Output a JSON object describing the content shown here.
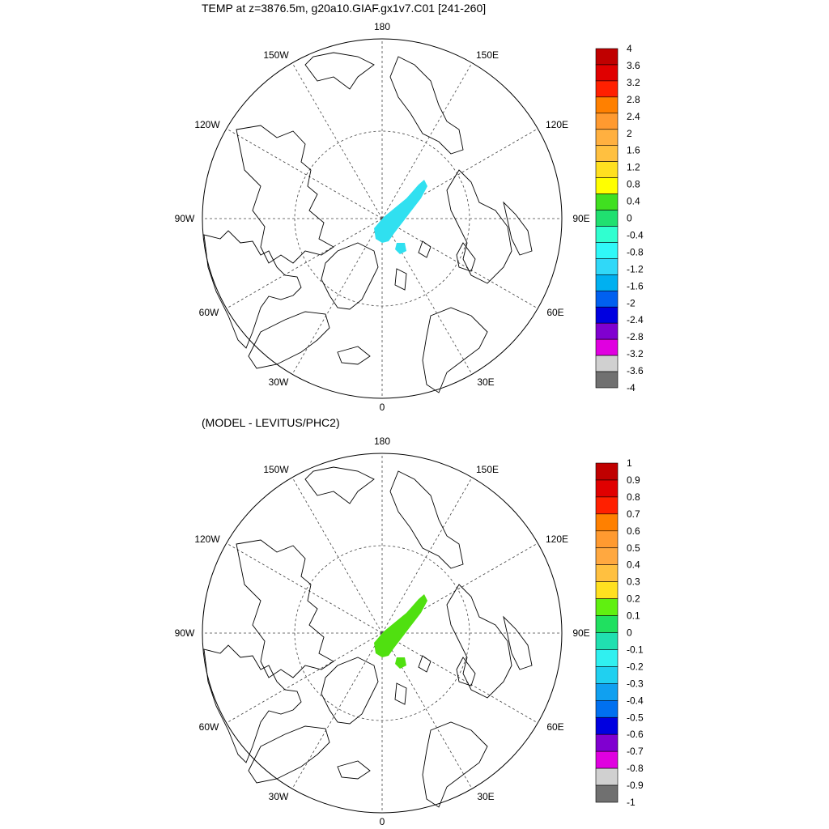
{
  "panels": [
    {
      "title": "TEMP at z=3876.5m, g20a10.GIAF.gx1v7.C01 [241-260]",
      "longitude_labels": [
        "180",
        "150E",
        "120E",
        "90E",
        "60E",
        "30E",
        "0",
        "30W",
        "60W",
        "90W",
        "120W",
        "150W"
      ],
      "colorbar": {
        "labels": [
          "4",
          "3.6",
          "3.2",
          "2.8",
          "2.4",
          "2",
          "1.6",
          "1.2",
          "0.8",
          "0.4",
          "0",
          "-0.4",
          "-0.8",
          "-1.2",
          "-1.6",
          "-2",
          "-2.4",
          "-2.8",
          "-3.2",
          "-3.6",
          "-4"
        ],
        "colors": [
          "#c00000",
          "#e00000",
          "#ff2000",
          "#ff8000",
          "#ff9a30",
          "#ffb040",
          "#ffc040",
          "#ffe020",
          "#ffff00",
          "#40e020",
          "#20e070",
          "#30ffd0",
          "#30f8f8",
          "#30d8f8",
          "#00b0f0",
          "#0060f0",
          "#0000e0",
          "#8000d0",
          "#e000e0",
          "#d0d0d0",
          "#707070"
        ]
      },
      "anomaly_color": "#30e0f0"
    },
    {
      "title": "(MODEL - LEVITUS/PHC2)",
      "longitude_labels": [
        "180",
        "150E",
        "120E",
        "90E",
        "60E",
        "30E",
        "0",
        "30W",
        "60W",
        "90W",
        "120W",
        "150W"
      ],
      "colorbar": {
        "labels": [
          "1",
          "0.9",
          "0.8",
          "0.7",
          "0.6",
          "0.5",
          "0.4",
          "0.3",
          "0.2",
          "0.1",
          "0",
          "-0.1",
          "-0.2",
          "-0.3",
          "-0.4",
          "-0.5",
          "-0.6",
          "-0.7",
          "-0.8",
          "-0.9",
          "-1"
        ],
        "colors": [
          "#c00000",
          "#e00000",
          "#ff2000",
          "#ff8000",
          "#ff9a30",
          "#ffa840",
          "#ffc040",
          "#ffe020",
          "#60f010",
          "#20e060",
          "#20e0b0",
          "#30f0f0",
          "#20d0f0",
          "#10a0f0",
          "#0070f0",
          "#0000e0",
          "#8000d0",
          "#e000e0",
          "#d0d0d0",
          "#707070"
        ]
      },
      "anomaly_color": "#50e010"
    }
  ]
}
